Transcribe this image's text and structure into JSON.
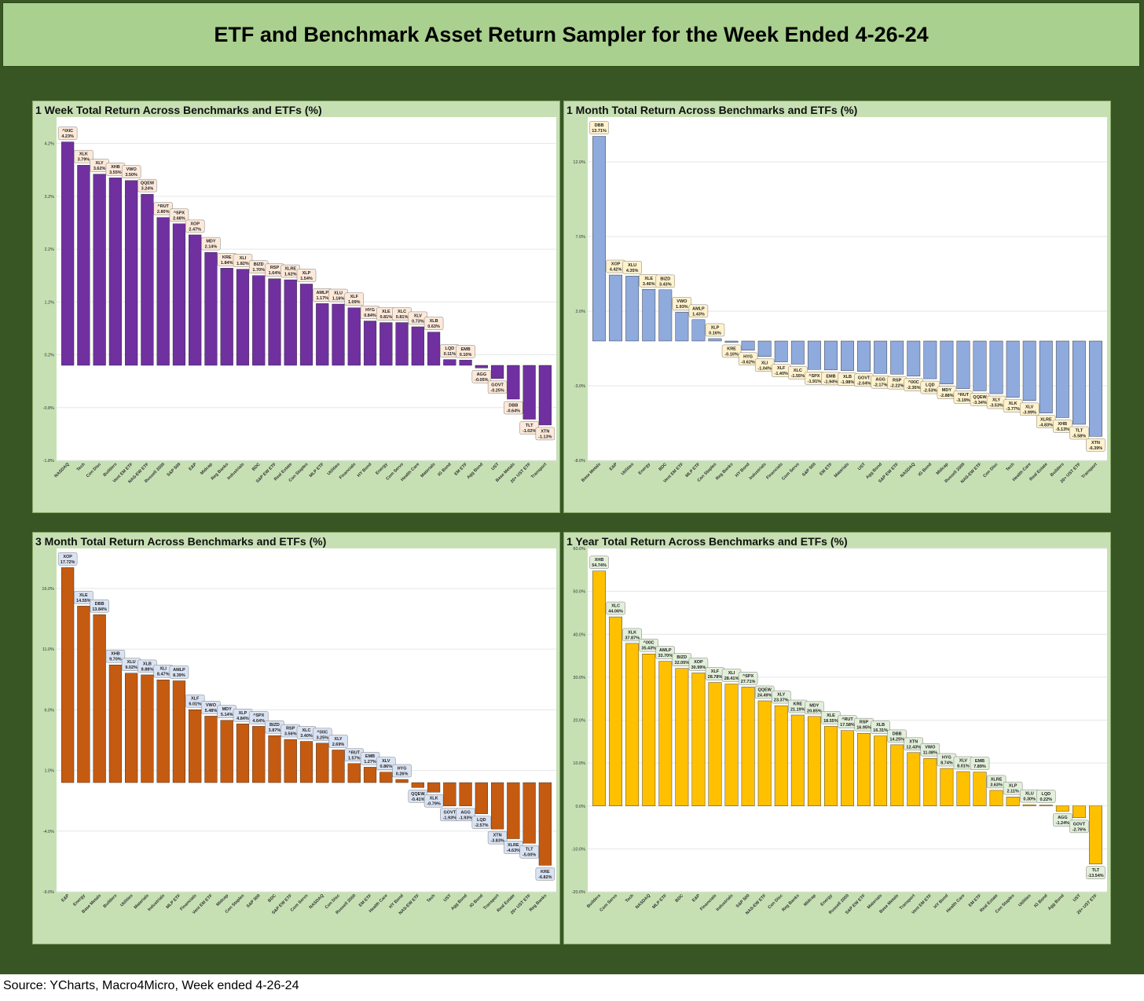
{
  "title": "ETF and Benchmark Asset Return Sampler for the Week Ended 4-26-24",
  "source": "Source: YCharts, Macro4Micro, Week ended 4-26-24",
  "chart_data": [
    {
      "id": "week",
      "type": "bar",
      "title": "1 Week Total Return Across Benchmarks and ETFs (%)",
      "color": "#7030a0",
      "label_bg": "#fde9d9",
      "ylim": [
        -1.8,
        4.7
      ],
      "yticks": [
        4.2,
        3.2,
        2.2,
        1.2,
        0.2,
        -0.8,
        -1.8
      ],
      "ytick_labels": [
        "4.2%",
        "3.2%",
        "2.2%",
        "1.2%",
        "0.2%",
        "-0.8%",
        "-1.8%"
      ],
      "baseline": 0.0,
      "categories": [
        "NASDAQ",
        "Tech",
        "Con Disc",
        "Builders",
        "Vent EM ETF",
        "NAS-EW ETF",
        "Russell 2000",
        "S&P 500",
        "E&P",
        "Midcap",
        "Reg Banks",
        "Industrials",
        "BDC",
        "S&P EW ETF",
        "Real Estate",
        "Con Staples",
        "MLP ETF",
        "Utilities",
        "Financials",
        "HY Bond",
        "Energy",
        "Com Servs",
        "Health Care",
        "Materials",
        "IG Bond",
        "EM ETF",
        "Agg Bond",
        "UST",
        "Base Metals",
        "20+ UST ETF",
        "Transport"
      ],
      "tickers": [
        "^IXIC",
        "XLK",
        "XLY",
        "XHB",
        "VWO",
        "QQEW",
        "^RUT",
        "^SPX",
        "XOP",
        "MDY",
        "KRE",
        "XLI",
        "BIZD",
        "RSP",
        "XLRE",
        "XLP",
        "AMLP",
        "XLU",
        "XLF",
        "HYG",
        "XLE",
        "XLC",
        "XLV",
        "XLB",
        "LQD",
        "EMB",
        "AGG",
        "GOVT",
        "DBB",
        "TLT",
        "XTN"
      ],
      "labels": [
        "4.23%",
        "3.79%",
        "3.62%",
        "3.55%",
        "3.50%",
        "3.24%",
        "2.80%",
        "2.68%",
        "2.47%",
        "2.14%",
        "1.84%",
        "1.82%",
        "1.70%",
        "1.64%",
        "1.62%",
        "1.54%",
        "1.17%",
        "1.16%",
        "1.09%",
        "0.84%",
        "0.81%",
        "0.81%",
        "0.73%",
        "0.63%",
        "0.11%",
        "0.10%",
        "-0.05%",
        "-0.25%",
        "-0.64%",
        "-1.02%",
        "-1.13%"
      ],
      "values": [
        4.23,
        3.79,
        3.62,
        3.55,
        3.5,
        3.24,
        2.8,
        2.68,
        2.47,
        2.14,
        1.84,
        1.82,
        1.7,
        1.64,
        1.62,
        1.54,
        1.17,
        1.16,
        1.09,
        0.84,
        0.81,
        0.81,
        0.73,
        0.63,
        0.11,
        0.1,
        -0.05,
        -0.25,
        -0.64,
        -1.02,
        -1.13
      ]
    },
    {
      "id": "month",
      "type": "bar",
      "title": "1 Month Total Return Across Benchmarks and ETFs (%)",
      "color": "#8faadc",
      "label_bg": "#fff2cc",
      "ylim": [
        -8.0,
        15.0
      ],
      "yticks": [
        12.0,
        7.0,
        2.0,
        -3.0,
        -8.0
      ],
      "ytick_labels": [
        "12.0%",
        "7.0%",
        "2.0%",
        "-3.0%",
        "-8.0%"
      ],
      "baseline": 0.0,
      "categories": [
        "Base Metals",
        "E&P",
        "Utilities",
        "Energy",
        "BDC",
        "Vent EM ETF",
        "MLP ETF",
        "Con Staples",
        "Reg Banks",
        "HY Bond",
        "Industrials",
        "Financials",
        "Com Servs",
        "S&P 500",
        "EM ETF",
        "Materials",
        "UST",
        "Agg Bond",
        "S&P EW ETF",
        "NASDAQ",
        "IG Bond",
        "Midcap",
        "Russell 2000",
        "NAS-EW ETF",
        "Con Disc",
        "Tech",
        "Health Care",
        "Real Estate",
        "Builders",
        "20+ UST ETF",
        "Transport"
      ],
      "tickers": [
        "DBB",
        "XOP",
        "XLU",
        "XLE",
        "BIZD",
        "VWO",
        "AMLP",
        "XLP",
        "KRE",
        "HYG",
        "XLI",
        "XLF",
        "XLC",
        "^SPX",
        "EMB",
        "XLB",
        "GOVT",
        "AGG",
        "RSP",
        "^IXIC",
        "LQD",
        "MDY",
        "^RUT",
        "QQEW",
        "XLY",
        "XLK",
        "XLV",
        "XLRE",
        "XHB",
        "TLT",
        "XTN"
      ],
      "labels": [
        "13.71%",
        "4.42%",
        "4.35%",
        "3.46%",
        "3.43%",
        "1.93%",
        "1.43%",
        "0.16%",
        "-0.10%",
        "-0.62%",
        "-1.04%",
        "-1.40%",
        "-1.55%",
        "-1.91%",
        "-1.94%",
        "-1.98%",
        "-2.04%",
        "-2.17%",
        "-2.22%",
        "-2.35%",
        "-2.53%",
        "-2.88%",
        "-3.19%",
        "-3.34%",
        "-3.53%",
        "-3.77%",
        "-3.99%",
        "-4.83%",
        "-5.13%",
        "-5.58%",
        "-6.39%"
      ],
      "values": [
        13.71,
        4.42,
        4.35,
        3.46,
        3.43,
        1.93,
        1.43,
        0.16,
        -0.1,
        -0.62,
        -1.04,
        -1.4,
        -1.55,
        -1.91,
        -1.94,
        -1.98,
        -2.04,
        -2.17,
        -2.22,
        -2.35,
        -2.53,
        -2.88,
        -3.19,
        -3.34,
        -3.53,
        -3.77,
        -3.99,
        -4.83,
        -5.13,
        -5.58,
        -6.39
      ]
    },
    {
      "id": "quarter",
      "type": "bar",
      "title": "3 Month Total Return Across Benchmarks and ETFs (%)",
      "color": "#c55a11",
      "label_bg": "#dae3f3",
      "ylim": [
        -9.0,
        19.3
      ],
      "yticks": [
        16.0,
        11.0,
        6.0,
        1.0,
        -4.0,
        -9.0
      ],
      "ytick_labels": [
        "16.0%",
        "11.0%",
        "6.0%",
        "1.0%",
        "-4.0%",
        "-9.0%"
      ],
      "baseline": 0.0,
      "categories": [
        "E&P",
        "Energy",
        "Base Metals",
        "Builders",
        "Utilities",
        "Materials",
        "Industrials",
        "MLP ETF",
        "Financials",
        "Vent EM ETF",
        "Midcap",
        "Con Staples",
        "S&P 500",
        "BDC",
        "S&P EW ETF",
        "Com Servs",
        "NASDAQ",
        "Con Disc",
        "Russell 2000",
        "EM ETF",
        "Health Care",
        "HY Bond",
        "NAS-EW ETF",
        "Tech",
        "UST",
        "Agg Bond",
        "IG Bond",
        "Transport",
        "Real Estate",
        "20+ UST ETF",
        "Reg Banks"
      ],
      "tickers": [
        "XOP",
        "XLE",
        "DBB",
        "XHB",
        "XLU",
        "XLB",
        "XLI",
        "AMLP",
        "XLF",
        "VWO",
        "MDY",
        "XLP",
        "^SPX",
        "BIZD",
        "RSP",
        "XLC",
        "^IXIC",
        "XLY",
        "^RUT",
        "EMB",
        "XLV",
        "HYG",
        "QQEW",
        "XLK",
        "GOVT",
        "AGG",
        "LQD",
        "XTN",
        "XLRE",
        "TLT",
        "KRE"
      ],
      "labels": [
        "17.72%",
        "14.55%",
        "13.84%",
        "9.70%",
        "9.02%",
        "8.88%",
        "8.47%",
        "8.39%",
        "6.01%",
        "5.48%",
        "5.14%",
        "4.84%",
        "4.64%",
        "3.87%",
        "3.56%",
        "3.40%",
        "3.25%",
        "2.69%",
        "1.57%",
        "1.27%",
        "0.86%",
        "0.26%",
        "-0.41%",
        "-0.79%",
        "-1.93%",
        "-1.93%",
        "-2.57%",
        "-3.83%",
        "-4.63%",
        "-5.00%",
        "-6.82%"
      ],
      "values": [
        17.72,
        14.55,
        13.84,
        9.7,
        9.02,
        8.88,
        8.47,
        8.39,
        6.01,
        5.48,
        5.14,
        4.84,
        4.64,
        3.87,
        3.56,
        3.4,
        3.25,
        2.69,
        1.57,
        1.27,
        0.86,
        0.26,
        -0.41,
        -0.79,
        -1.93,
        -1.93,
        -2.57,
        -3.83,
        -4.63,
        -5.0,
        -6.82
      ]
    },
    {
      "id": "year",
      "type": "bar",
      "title": "1 Year Total Return Across Benchmarks and ETFs (%)",
      "color": "#ffc000",
      "label_bg": "#e2efda",
      "ylim": [
        -20.0,
        60.0
      ],
      "yticks": [
        60.0,
        50.0,
        40.0,
        30.0,
        20.0,
        10.0,
        0.0,
        -10.0,
        -20.0
      ],
      "ytick_labels": [
        "60.0%",
        "50.0%",
        "40.0%",
        "30.0%",
        "20.0%",
        "10.0%",
        "0.0%",
        "-10.0%",
        "-20.0%"
      ],
      "baseline": 0.0,
      "categories": [
        "Builders",
        "Com Servs",
        "Tech",
        "NASDAQ",
        "MLP ETF",
        "BDC",
        "E&P",
        "Financials",
        "Industrials",
        "S&P 500",
        "NAS-EW ETF",
        "Con Disc",
        "Reg Banks",
        "Midcap",
        "Energy",
        "Russell 2000",
        "S&P EW ETF",
        "Materials",
        "Base Metals",
        "Transport",
        "Vent EM ETF",
        "HY Bond",
        "Health Care",
        "EM ETF",
        "Real Estate",
        "Con Staples",
        "Utilities",
        "IG Bond",
        "Agg Bond",
        "UST",
        "20+ UST ETF"
      ],
      "tickers": [
        "XHB",
        "XLC",
        "XLK",
        "^IXIC",
        "AMLP",
        "BIZD",
        "XOP",
        "XLF",
        "XLI",
        "^SPX",
        "QQEW",
        "XLY",
        "KRE",
        "MDY",
        "XLE",
        "^RUT",
        "RSP",
        "XLB",
        "DBB",
        "XTN",
        "VWO",
        "HYG",
        "XLV",
        "EMB",
        "XLRE",
        "XLP",
        "XLU",
        "LQD",
        "AGG",
        "GOVT",
        "TLT"
      ],
      "labels": [
        "54.74%",
        "44.06%",
        "37.87%",
        "35.43%",
        "33.70%",
        "32.05%",
        "30.99%",
        "28.78%",
        "28.41%",
        "27.71%",
        "24.49%",
        "23.37%",
        "21.19%",
        "20.85%",
        "18.55%",
        "17.58%",
        "16.95%",
        "16.31%",
        "14.25%",
        "12.43%",
        "11.08%",
        "8.74%",
        "8.01%",
        "7.89%",
        "3.63%",
        "2.11%",
        "0.30%",
        "0.22%",
        "-1.24%",
        "-2.76%",
        "-13.54%"
      ],
      "values": [
        54.74,
        44.06,
        37.87,
        35.43,
        33.7,
        32.05,
        30.99,
        28.78,
        28.41,
        27.71,
        24.49,
        23.37,
        21.19,
        20.85,
        18.55,
        17.58,
        16.95,
        16.31,
        14.25,
        12.43,
        11.08,
        8.74,
        8.01,
        7.89,
        3.63,
        2.11,
        0.3,
        0.22,
        -1.24,
        -2.76,
        -13.54
      ]
    }
  ]
}
